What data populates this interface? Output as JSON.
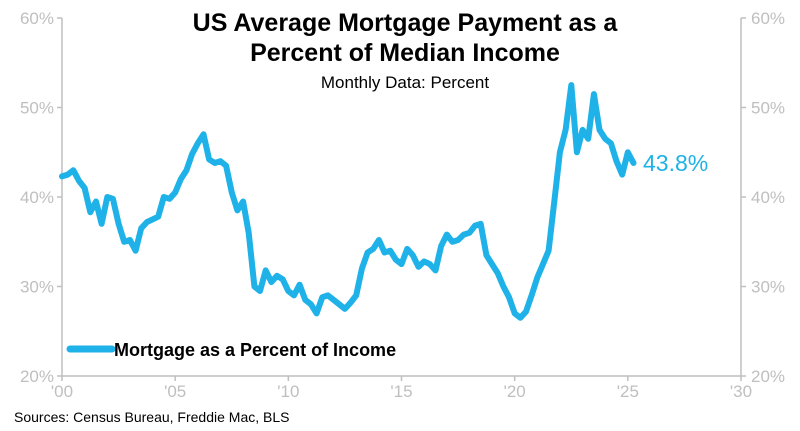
{
  "header": {
    "title_line1": "US Average Mortgage Payment as a",
    "title_line2": "Percent of Median Income",
    "subtitle": "Monthly Data: Percent"
  },
  "footer": {
    "source": "Sources: Census Bureau, Freddie Mac, BLS"
  },
  "colors": {
    "series": "#1fb2e8",
    "axis": "#bfbfbf",
    "text": "#000000"
  },
  "chart_data": {
    "type": "line",
    "title": "US Average Mortgage Payment as a Percent of Median Income",
    "subtitle": "Monthly Data: Percent",
    "xlabel": "",
    "ylabel": "",
    "xlim": [
      2000,
      2030
    ],
    "ylim": [
      20,
      60
    ],
    "x_ticks": [
      2000,
      2005,
      2010,
      2015,
      2020,
      2025,
      2030
    ],
    "x_tick_labels": [
      "'00",
      "'05",
      "'10",
      "'15",
      "'20",
      "'25",
      "'30"
    ],
    "y_ticks": [
      20,
      30,
      40,
      50,
      60
    ],
    "y_tick_labels": [
      "20%",
      "30%",
      "40%",
      "50%",
      "60%"
    ],
    "y_axis_sides": [
      "left",
      "right"
    ],
    "grid": false,
    "legend": {
      "placement": "bottom-left",
      "entries": [
        "Mortgage as a Percent of Income"
      ]
    },
    "end_label": "43.8%",
    "series": [
      {
        "name": "Mortgage as a Percent of Income",
        "x": [
          2000.0,
          2000.25,
          2000.5,
          2000.75,
          2001.0,
          2001.25,
          2001.5,
          2001.75,
          2002.0,
          2002.25,
          2002.5,
          2002.75,
          2003.0,
          2003.25,
          2003.5,
          2003.75,
          2004.0,
          2004.25,
          2004.5,
          2004.75,
          2005.0,
          2005.25,
          2005.5,
          2005.75,
          2006.0,
          2006.25,
          2006.5,
          2006.75,
          2007.0,
          2007.25,
          2007.5,
          2007.75,
          2008.0,
          2008.25,
          2008.5,
          2008.75,
          2009.0,
          2009.25,
          2009.5,
          2009.75,
          2010.0,
          2010.25,
          2010.5,
          2010.75,
          2011.0,
          2011.25,
          2011.5,
          2011.75,
          2012.0,
          2012.25,
          2012.5,
          2012.75,
          2013.0,
          2013.25,
          2013.5,
          2013.75,
          2014.0,
          2014.25,
          2014.5,
          2014.75,
          2015.0,
          2015.25,
          2015.5,
          2015.75,
          2016.0,
          2016.25,
          2016.5,
          2016.75,
          2017.0,
          2017.25,
          2017.5,
          2017.75,
          2018.0,
          2018.25,
          2018.5,
          2018.75,
          2019.0,
          2019.25,
          2019.5,
          2019.75,
          2020.0,
          2020.25,
          2020.5,
          2020.75,
          2021.0,
          2021.25,
          2021.5,
          2021.75,
          2022.0,
          2022.25,
          2022.5,
          2022.75,
          2023.0,
          2023.25,
          2023.5,
          2023.75,
          2024.0,
          2024.25,
          2024.5,
          2024.75,
          2025.0,
          2025.25
        ],
        "values": [
          42.3,
          42.5,
          43.0,
          41.8,
          41.0,
          38.3,
          39.5,
          37.0,
          40.0,
          39.8,
          37.0,
          35.0,
          35.2,
          34.0,
          36.5,
          37.2,
          37.5,
          37.8,
          40.0,
          39.8,
          40.5,
          42.0,
          43.0,
          44.8,
          46.0,
          47.0,
          44.2,
          43.8,
          44.0,
          43.5,
          40.5,
          38.5,
          39.5,
          36.0,
          30.0,
          29.5,
          31.8,
          30.5,
          31.2,
          30.8,
          29.5,
          29.0,
          30.2,
          28.5,
          28.0,
          27.0,
          28.8,
          29.0,
          28.5,
          28.0,
          27.5,
          28.2,
          29.0,
          32.0,
          33.8,
          34.2,
          35.2,
          33.8,
          34.0,
          33.0,
          32.5,
          34.2,
          33.5,
          32.2,
          32.8,
          32.5,
          31.8,
          34.5,
          35.8,
          35.0,
          35.2,
          35.8,
          36.0,
          36.8,
          37.0,
          33.5,
          32.5,
          31.5,
          30.0,
          28.8,
          27.0,
          26.5,
          27.2,
          29.0,
          31.0,
          32.5,
          34.0,
          39.5,
          45.0,
          47.5,
          52.5,
          45.0,
          47.5,
          46.5,
          51.5,
          47.5,
          46.5,
          46.0,
          44.0,
          42.5,
          45.0,
          43.8
        ]
      }
    ]
  }
}
